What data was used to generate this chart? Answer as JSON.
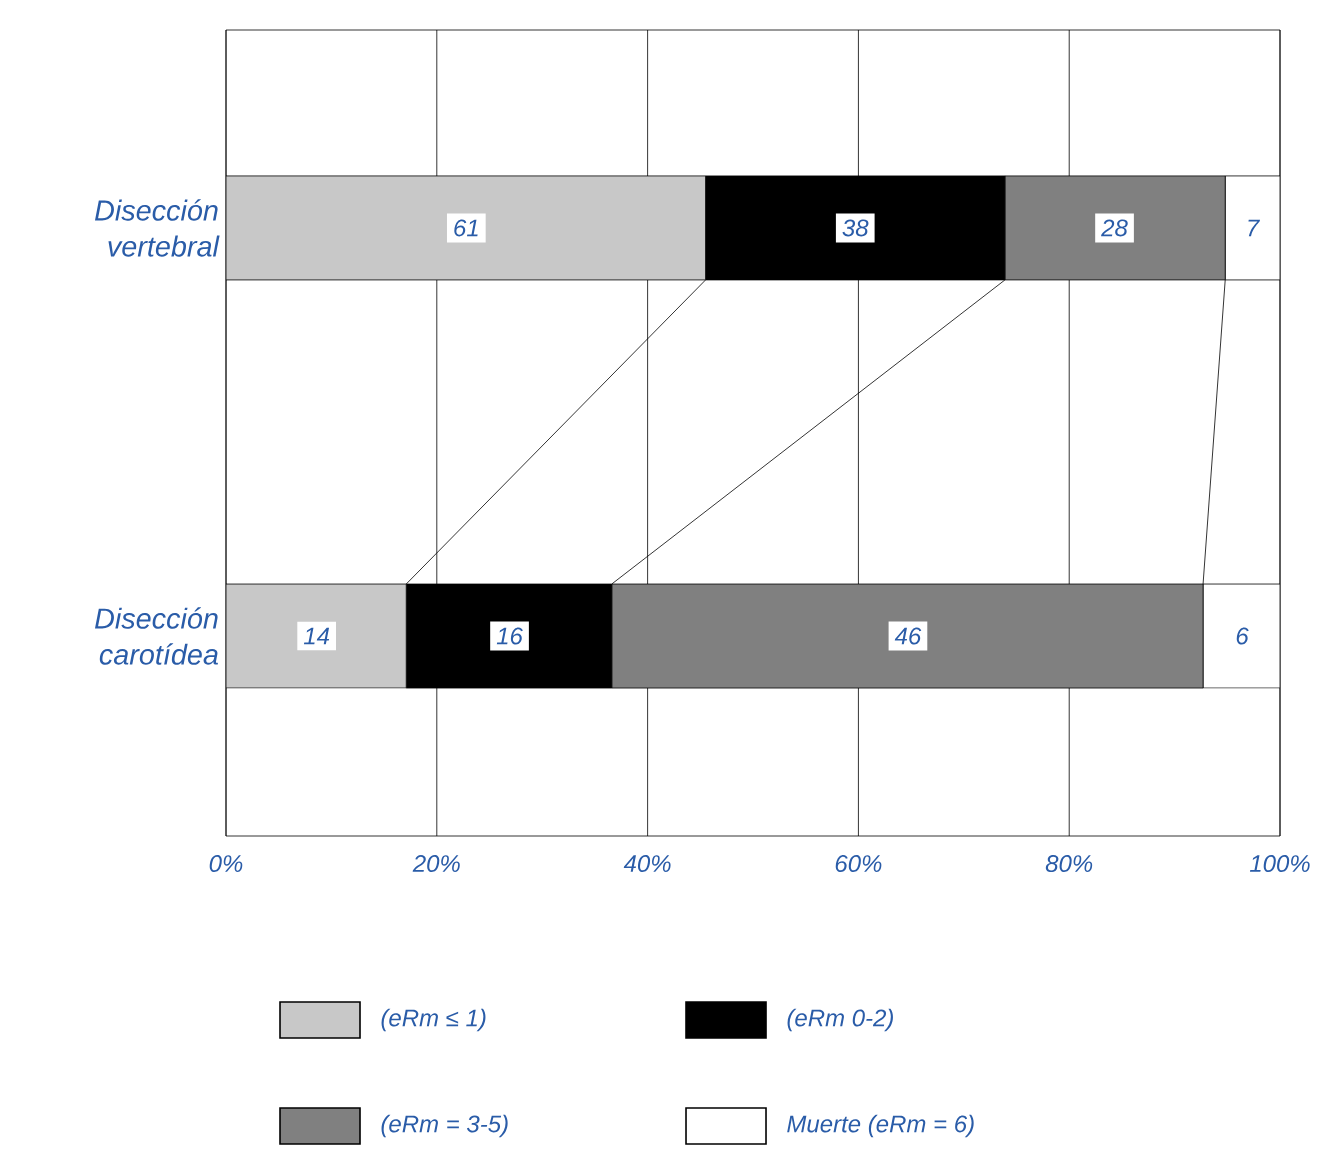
{
  "chart_data": {
    "type": "bar",
    "orientation": "horizontal",
    "stacked": true,
    "categories": [
      "Disección vertebral",
      "Disección carotídea"
    ],
    "xlim": [
      0,
      100
    ],
    "xticks": [
      {
        "value": 0,
        "label": "0%"
      },
      {
        "value": 20,
        "label": "20%"
      },
      {
        "value": 40,
        "label": "40%"
      },
      {
        "value": 60,
        "label": "60%"
      },
      {
        "value": 80,
        "label": "80%"
      },
      {
        "value": 100,
        "label": "100%"
      }
    ],
    "grid": "x",
    "legend": "bottom",
    "series": [
      {
        "name": "(eRm ≤ 1)",
        "color": "#c8c8c8",
        "values": [
          45.5,
          17.1
        ]
      },
      {
        "name": "(eRm 0-2)",
        "color": "#000000",
        "values": [
          28.4,
          19.5
        ]
      },
      {
        "name": "(eRm = 3-5)",
        "color": "#808080",
        "values": [
          20.9,
          56.1
        ]
      },
      {
        "name": "Muerte (eRm = 6)",
        "color": "#ffffff",
        "values": [
          5.2,
          7.3
        ]
      }
    ],
    "annotations": [
      {
        "text": "61",
        "x": 22.8,
        "y": "Disección vertebral"
      },
      {
        "text": "38",
        "x": 59.7,
        "y": "Disección vertebral"
      },
      {
        "text": "28",
        "x": 84.3,
        "y": "Disección vertebral"
      },
      {
        "text": "7",
        "x": 97.4,
        "y": "Disección vertebral"
      },
      {
        "text": "14",
        "x": 8.6,
        "y": "Disección carotídea"
      },
      {
        "text": "16",
        "x": 26.9,
        "y": "Disección carotídea"
      },
      {
        "text": "46",
        "x": 64.7,
        "y": "Disección carotídea"
      },
      {
        "text": "6",
        "x": 96.4,
        "y": "Disección carotídea"
      }
    ]
  }
}
